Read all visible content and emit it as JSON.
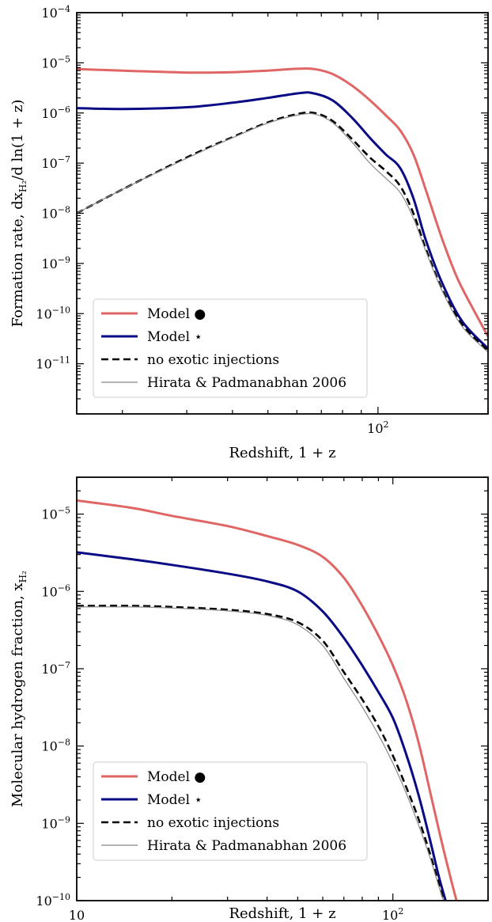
{
  "chart_data": [
    {
      "type": "line",
      "title": "",
      "xlabel": "Redshift, 1 + z",
      "ylabel": "Formation rate, dx",
      "ylabel_sub": "H₂",
      "ylabel_tail": "/d ln(1 + z)",
      "x_scale": "log",
      "y_scale": "log",
      "xlim": [
        15,
        200
      ],
      "ylim": [
        1e-12,
        0.0001
      ],
      "x_ticks": [
        {
          "value": 100,
          "base": "10",
          "exp": "2"
        }
      ],
      "y_ticks": [
        {
          "value": 1e-11,
          "base": "10",
          "exp": "−11"
        },
        {
          "value": 1e-10,
          "base": "10",
          "exp": "−10"
        },
        {
          "value": 1e-09,
          "base": "10",
          "exp": "−9"
        },
        {
          "value": 1e-08,
          "base": "10",
          "exp": "−8"
        },
        {
          "value": 1e-07,
          "base": "10",
          "exp": "−7"
        },
        {
          "value": 1e-06,
          "base": "10",
          "exp": "−6"
        },
        {
          "value": 1e-05,
          "base": "10",
          "exp": "−5"
        },
        {
          "value": 0.0001,
          "base": "10",
          "exp": "−4"
        }
      ],
      "legend_position": "lower-left",
      "series": [
        {
          "name": "Model ●",
          "color": "#e06666",
          "style": "solid",
          "points": [
            [
              15,
              7.5e-06
            ],
            [
              20,
              7e-06
            ],
            [
              30,
              6.4e-06
            ],
            [
              40,
              6.5e-06
            ],
            [
              50,
              7e-06
            ],
            [
              60,
              7.6e-06
            ],
            [
              67,
              7.5e-06
            ],
            [
              75,
              6e-06
            ],
            [
              85,
              3.5e-06
            ],
            [
              95,
              1.8e-06
            ],
            [
              105,
              9e-07
            ],
            [
              115,
              4.5e-07
            ],
            [
              125,
              1.5e-07
            ],
            [
              135,
              3e-08
            ],
            [
              150,
              3e-09
            ],
            [
              165,
              5e-10
            ],
            [
              185,
              1e-10
            ],
            [
              200,
              3.5e-11
            ]
          ]
        },
        {
          "name": "Model ⋆",
          "color": "#0a0a85",
          "style": "solid",
          "points": [
            [
              15,
              1.25e-06
            ],
            [
              20,
              1.2e-06
            ],
            [
              30,
              1.3e-06
            ],
            [
              40,
              1.6e-06
            ],
            [
              50,
              2e-06
            ],
            [
              60,
              2.45e-06
            ],
            [
              66,
              2.5e-06
            ],
            [
              75,
              1.8e-06
            ],
            [
              85,
              8e-07
            ],
            [
              95,
              3.2e-07
            ],
            [
              105,
              1.5e-07
            ],
            [
              115,
              8e-08
            ],
            [
              125,
              2e-08
            ],
            [
              135,
              3e-09
            ],
            [
              150,
              4e-10
            ],
            [
              170,
              7e-11
            ],
            [
              200,
              2e-11
            ]
          ]
        },
        {
          "name": "no exotic injections",
          "color": "#000000",
          "style": "dashed",
          "points": [
            [
              15,
              1e-08
            ],
            [
              20,
              3e-08
            ],
            [
              30,
              1.3e-07
            ],
            [
              40,
              3.3e-07
            ],
            [
              50,
              6.5e-07
            ],
            [
              60,
              9.5e-07
            ],
            [
              67,
              1e-06
            ],
            [
              75,
              7e-07
            ],
            [
              85,
              3e-07
            ],
            [
              95,
              1.3e-07
            ],
            [
              105,
              7e-08
            ],
            [
              115,
              3.5e-08
            ],
            [
              125,
              1e-08
            ],
            [
              135,
              2e-09
            ],
            [
              150,
              3e-10
            ],
            [
              170,
              6e-11
            ],
            [
              200,
              1.8e-11
            ]
          ]
        },
        {
          "name": "Hirata & Padmanabhan 2006",
          "color": "#888888",
          "style": "thin",
          "points": [
            [
              15,
              1e-08
            ],
            [
              20,
              3e-08
            ],
            [
              30,
              1.25e-07
            ],
            [
              40,
              3.2e-07
            ],
            [
              50,
              6.3e-07
            ],
            [
              60,
              9e-07
            ],
            [
              67,
              9.5e-07
            ],
            [
              75,
              6.5e-07
            ],
            [
              85,
              2.6e-07
            ],
            [
              95,
              1e-07
            ],
            [
              105,
              5e-08
            ],
            [
              115,
              2.6e-08
            ],
            [
              125,
              8e-09
            ],
            [
              135,
              1.8e-09
            ],
            [
              150,
              2.8e-10
            ],
            [
              170,
              5.5e-11
            ],
            [
              200,
              1.7e-11
            ]
          ]
        }
      ]
    },
    {
      "type": "line",
      "title": "",
      "xlabel": "Redshift, 1 + z",
      "ylabel": "Molecular hydrogen fraction, x",
      "ylabel_sub": "H₂",
      "ylabel_tail": "",
      "x_scale": "log",
      "y_scale": "log",
      "xlim": [
        10,
        200
      ],
      "ylim": [
        1e-10,
        3e-05
      ],
      "x_ticks": [
        {
          "value": 10,
          "base": "10",
          "exp": ""
        },
        {
          "value": 100,
          "base": "10",
          "exp": "2"
        }
      ],
      "y_ticks": [
        {
          "value": 1e-10,
          "base": "10",
          "exp": "−10"
        },
        {
          "value": 1e-09,
          "base": "10",
          "exp": "−9"
        },
        {
          "value": 1e-08,
          "base": "10",
          "exp": "−8"
        },
        {
          "value": 1e-07,
          "base": "10",
          "exp": "−7"
        },
        {
          "value": 1e-06,
          "base": "10",
          "exp": "−6"
        },
        {
          "value": 1e-05,
          "base": "10",
          "exp": "−5"
        }
      ],
      "legend_position": "lower-left",
      "series": [
        {
          "name": "Model ●",
          "color": "#e06666",
          "style": "solid",
          "points": [
            [
              10,
              1.5e-05
            ],
            [
              15,
              1.2e-05
            ],
            [
              20,
              9.5e-06
            ],
            [
              30,
              7e-06
            ],
            [
              40,
              5.2e-06
            ],
            [
              50,
              4e-06
            ],
            [
              60,
              2.8e-06
            ],
            [
              70,
              1.5e-06
            ],
            [
              80,
              6.5e-07
            ],
            [
              90,
              2.7e-07
            ],
            [
              100,
              1.1e-07
            ],
            [
              110,
              4e-08
            ],
            [
              120,
              1.2e-08
            ],
            [
              130,
              3e-09
            ],
            [
              140,
              8e-10
            ],
            [
              150,
              2.5e-10
            ],
            [
              160,
              9e-11
            ]
          ]
        },
        {
          "name": "Model ⋆",
          "color": "#0a0a85",
          "style": "solid",
          "points": [
            [
              10,
              3.2e-06
            ],
            [
              15,
              2.6e-06
            ],
            [
              20,
              2.2e-06
            ],
            [
              30,
              1.7e-06
            ],
            [
              40,
              1.35e-06
            ],
            [
              50,
              1e-06
            ],
            [
              60,
              5.5e-07
            ],
            [
              70,
              2.5e-07
            ],
            [
              80,
              1.1e-07
            ],
            [
              90,
              5e-08
            ],
            [
              100,
              2.3e-08
            ],
            [
              110,
              8e-09
            ],
            [
              120,
              2.5e-09
            ],
            [
              130,
              7e-10
            ],
            [
              140,
              2e-10
            ],
            [
              148,
              9e-11
            ]
          ]
        },
        {
          "name": "no exotic injections",
          "color": "#000000",
          "style": "dashed",
          "points": [
            [
              10,
              6.5e-07
            ],
            [
              15,
              6.5e-07
            ],
            [
              20,
              6.3e-07
            ],
            [
              30,
              5.8e-07
            ],
            [
              40,
              5.1e-07
            ],
            [
              50,
              4e-07
            ],
            [
              60,
              2.3e-07
            ],
            [
              70,
              9e-08
            ],
            [
              80,
              4e-08
            ],
            [
              90,
              1.8e-08
            ],
            [
              100,
              7.5e-09
            ],
            [
              110,
              3e-09
            ],
            [
              120,
              1.2e-09
            ],
            [
              130,
              4.5e-10
            ],
            [
              140,
              1.6e-10
            ],
            [
              146,
              9e-11
            ]
          ]
        },
        {
          "name": "Hirata & Padmanabhan 2006",
          "color": "#888888",
          "style": "thin",
          "points": [
            [
              10,
              6.3e-07
            ],
            [
              15,
              6.3e-07
            ],
            [
              20,
              6.1e-07
            ],
            [
              30,
              5.6e-07
            ],
            [
              40,
              4.9e-07
            ],
            [
              50,
              3.7e-07
            ],
            [
              60,
              2e-07
            ],
            [
              70,
              7.5e-08
            ],
            [
              80,
              3.2e-08
            ],
            [
              90,
              1.4e-08
            ],
            [
              100,
              6e-09
            ],
            [
              110,
              2.5e-09
            ],
            [
              120,
              1e-09
            ],
            [
              130,
              4e-10
            ],
            [
              140,
              1.5e-10
            ],
            [
              146,
              9e-11
            ]
          ]
        }
      ]
    }
  ]
}
